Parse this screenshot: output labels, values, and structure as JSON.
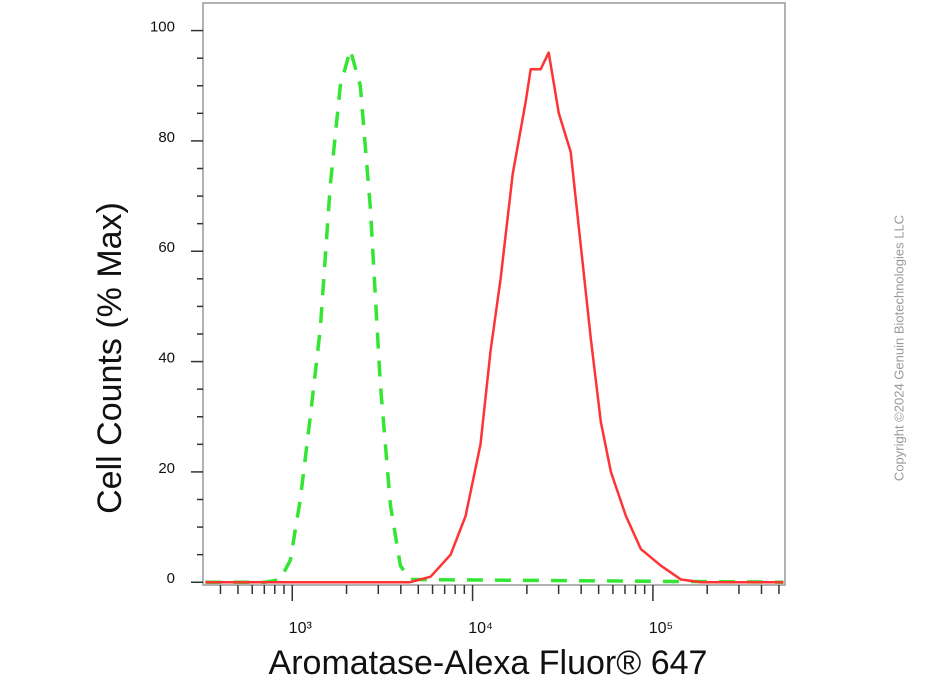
{
  "chart_data": {
    "type": "line",
    "xlabel": "Aromatase-Alexa Fluor® 647",
    "ylabel": "Cell Counts (% Max)",
    "watermark": "Copyright ©2024 Genuin Biotechnologies LLC",
    "xscale": "log",
    "xlim": [
      320,
      540000
    ],
    "ylim": [
      -0.5,
      105
    ],
    "xticks": [
      {
        "value": 1000,
        "label": "10³"
      },
      {
        "value": 10000,
        "label": "10⁴"
      },
      {
        "value": 100000,
        "label": "10⁵"
      }
    ],
    "xticks_minor": [
      400,
      500,
      600,
      700,
      800,
      900,
      2000,
      3000,
      4000,
      5000,
      6000,
      7000,
      8000,
      9000,
      20000,
      30000,
      40000,
      50000,
      60000,
      70000,
      80000,
      90000,
      200000,
      300000,
      400000,
      500000
    ],
    "yticks": [
      0,
      20,
      40,
      60,
      80,
      100
    ],
    "yticks_minor": [
      5,
      10,
      15,
      25,
      30,
      35,
      45,
      50,
      55,
      65,
      70,
      75,
      85,
      90,
      95
    ],
    "series": [
      {
        "color": "#33e633",
        "dash": true,
        "x": [
          330,
          708,
          858,
          975,
          1108,
          1259,
          1430,
          1625,
          1848,
          2100,
          2385,
          2710,
          3080,
          3500,
          3980,
          4520,
          530000
        ],
        "values": [
          0,
          0,
          0.5,
          4,
          15,
          30,
          46,
          72,
          90,
          96.5,
          90,
          68,
          36,
          14,
          3,
          0.5,
          0
        ]
      },
      {
        "color": "#ff3333",
        "dash": false,
        "x": [
          330,
          4500,
          5850,
          7550,
          9150,
          11070,
          12590,
          14310,
          16680,
          19690,
          21000,
          23870,
          26440,
          30050,
          35000,
          39810,
          45290,
          51450,
          58500,
          70800,
          85800,
          110700,
          143200,
          185000,
          530000
        ],
        "values": [
          0,
          0,
          1,
          5,
          12,
          25,
          42,
          55,
          74,
          87,
          93,
          93,
          96,
          85,
          78,
          61,
          44,
          29,
          20,
          12,
          6,
          3,
          0.5,
          0,
          0
        ]
      }
    ]
  }
}
